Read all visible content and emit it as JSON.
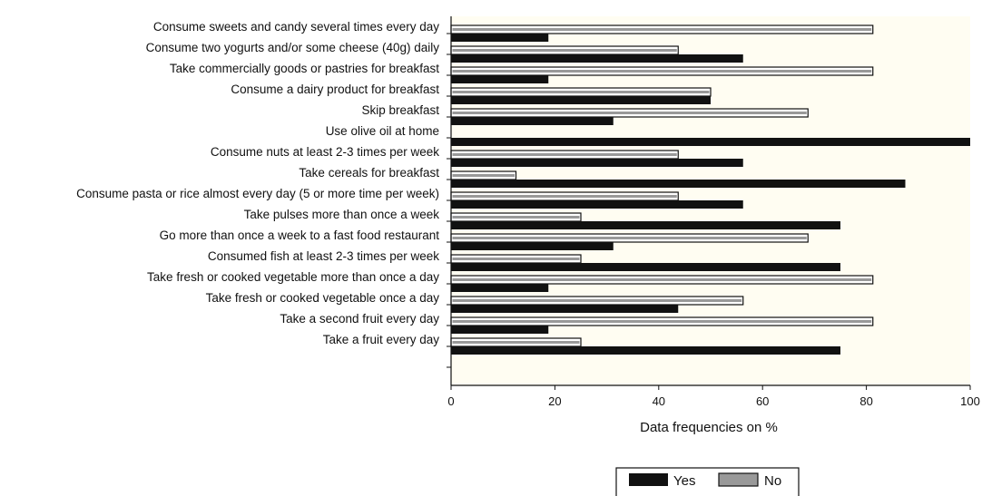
{
  "chart_data": {
    "type": "bar",
    "orientation": "horizontal",
    "title": "",
    "xlabel": "Data frequencies on %",
    "ylabel": "",
    "xlim": [
      0,
      100
    ],
    "x_ticks": [
      0,
      20,
      40,
      60,
      80,
      100
    ],
    "grid": false,
    "legend_position": "bottom-center",
    "plot_background": "#fffdf2",
    "categories": [
      "Consume sweets and candy several times every day",
      "Consume two yogurts and/or some cheese (40g) daily",
      "Take commercially goods or pastries for breakfast",
      "Consume a dairy product for breakfast",
      "Skip breakfast",
      "Use olive oil at home",
      "Consume nuts at least 2-3 times per week",
      "Take cereals for breakfast",
      "Consume pasta or rice almost every day (5 or more time per week)",
      "Take pulses more than once a week",
      "Go more than once a week to a fast food restaurant",
      "Consumed fish at least 2-3 times per week",
      "Take fresh or cooked vegetable more than once a day",
      "Take fresh or cooked vegetable once a day",
      "Take a second fruit every day",
      "Take a fruit every day"
    ],
    "series": [
      {
        "name": "Yes",
        "color": "#111111",
        "values": [
          18.75,
          56.25,
          18.75,
          50,
          31.25,
          100,
          56.25,
          87.5,
          56.25,
          75,
          31.25,
          75,
          18.75,
          43.75,
          18.75,
          75
        ]
      },
      {
        "name": "No",
        "color": "#999999",
        "values": [
          81.25,
          43.75,
          81.25,
          50,
          68.75,
          0,
          43.75,
          12.5,
          43.75,
          25,
          68.75,
          25,
          81.25,
          56.25,
          81.25,
          25
        ]
      }
    ]
  }
}
